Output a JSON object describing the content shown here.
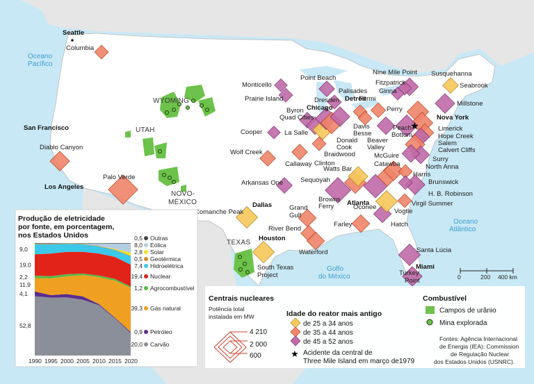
{
  "oceans": [
    {
      "id": "pacifico",
      "lines": [
        "Oceano",
        "Pacífico"
      ]
    },
    {
      "id": "atlantico",
      "lines": [
        "Oceano",
        "Atlântico"
      ]
    },
    {
      "id": "golfo",
      "lines": [
        "Golfo",
        "do México"
      ]
    }
  ],
  "states": [
    "WYOMING",
    "UTAH",
    "NOVO-",
    "MÉXICO",
    "TEXAS"
  ],
  "cities": [
    "Seattle",
    "San Francisco",
    "Los Angeles",
    "Dallas",
    "Houston",
    "Chicago",
    "Detroit",
    "Atlanta",
    "Nova York",
    "Miami"
  ],
  "plants": [
    "Columbia",
    "Diablo Canyon",
    "Palo Verde",
    "Comanche Peak",
    "South Texas",
    "Project",
    "Monticello",
    "Prairie Island",
    "Point Beach",
    "Palisades",
    "Cooper",
    "Wolf Creek",
    "Callaway",
    "Arkansas One",
    "Quad Cities",
    "Byron",
    "La Salle",
    "Dresden",
    "Donald",
    "Cook",
    "Braidwood",
    "Clinton",
    "Fermi",
    "Davis",
    "Besse",
    "Beaver",
    "Valley",
    "Perry",
    "Nine Mile Point",
    "Fitzpatrick",
    "Ginna",
    "Susquehanna",
    "Seabrook",
    "Millstone",
    "Peach",
    "Bottom",
    "Limerick",
    "Hope Creek",
    "Salem",
    "Calvert Cliffs",
    "Surry",
    "North Anna",
    "McGuire",
    "Catawba",
    "Harris",
    "Brunswick",
    "H. B. Robinson",
    "Watts Bar",
    "Sequoyah",
    "Browns",
    "Ferry",
    "Oconee",
    "Virgil Summer",
    "Vogtle",
    "Hatch",
    "Farley",
    "Grand",
    "Gulf",
    "River Bend",
    "Waterford",
    "Santa Lúcia",
    "Turkey",
    "Point"
  ],
  "chart": {
    "title_lines": [
      "Produção de eletricidade",
      "por fonte, em porcentagem,",
      "nos Estados Unidos"
    ],
    "x_ticks": [
      "1990",
      "1995",
      "2000",
      "2005",
      "2010",
      "2015",
      "2020"
    ],
    "left_values": [
      "9,0",
      "19,0",
      "2,2",
      "11,9",
      "4,1",
      "52,8"
    ],
    "legend": [
      {
        "value": "0,5",
        "label": "Outras",
        "color": "#444444"
      },
      {
        "value": "8,0",
        "label": "Eólica",
        "color": "#b5cde0"
      },
      {
        "value": "2,8",
        "label": "Solar",
        "color": "#f0e030"
      },
      {
        "value": "0,5",
        "label": "Geotérmica",
        "color": "#d38b2a"
      },
      {
        "value": "7,4",
        "label": "Hidroelétrica",
        "color": "#3cc8e8"
      },
      {
        "value": "19,4",
        "label": "Nuclear",
        "color": "#e2231a"
      },
      {
        "value": "1,2",
        "label": "Agrocombustível",
        "color": "#5ab946"
      },
      {
        "value": "39,3",
        "label": "Gás natural",
        "color": "#f0a020"
      },
      {
        "value": "0,9",
        "label": "Petróleo",
        "color": "#5a2d8c"
      },
      {
        "value": "20,0",
        "label": "Carvão",
        "color": "#8a8f99"
      }
    ]
  },
  "chart_data": {
    "type": "area",
    "title": "Produção de eletricidade por fonte, em porcentagem, nos Estados Unidos",
    "x": [
      1990,
      1995,
      2000,
      2005,
      2010,
      2015,
      2020
    ],
    "series": [
      {
        "name": "Carvão",
        "values": [
          52.8,
          51.5,
          51.7,
          49.6,
          44.8,
          33.2,
          20.0
        ]
      },
      {
        "name": "Petróleo",
        "values": [
          4.1,
          2.2,
          2.9,
          3.0,
          1.0,
          0.7,
          0.9
        ]
      },
      {
        "name": "Gás natural",
        "values": [
          11.9,
          14.8,
          15.8,
          18.8,
          23.9,
          32.7,
          39.3
        ]
      },
      {
        "name": "Agrocombustível",
        "values": [
          2.2,
          2.1,
          1.9,
          1.5,
          1.4,
          1.6,
          1.2
        ]
      },
      {
        "name": "Nuclear",
        "values": [
          19.0,
          20.1,
          19.8,
          19.3,
          19.6,
          19.5,
          19.4
        ]
      },
      {
        "name": "Hidroelétrica",
        "values": [
          9.0,
          8.2,
          7.2,
          6.7,
          6.3,
          6.1,
          7.4
        ]
      },
      {
        "name": "Geotérmica",
        "values": [
          0.5,
          0.5,
          0.4,
          0.4,
          0.4,
          0.4,
          0.5
        ]
      },
      {
        "name": "Solar",
        "values": [
          0.0,
          0.0,
          0.0,
          0.0,
          0.0,
          0.6,
          2.8
        ]
      },
      {
        "name": "Eólica",
        "values": [
          0.1,
          0.1,
          0.1,
          0.4,
          2.3,
          4.7,
          8.0
        ]
      },
      {
        "name": "Outras",
        "values": [
          0.4,
          0.5,
          0.2,
          0.3,
          0.3,
          0.5,
          0.5
        ]
      }
    ]
  },
  "legend_centrais": {
    "title": "Centrais nucleares",
    "subtitle_lines": [
      "Potência total",
      "instalada em MW"
    ],
    "sizes": [
      "4 210",
      "2 000",
      "600"
    ]
  },
  "legend_idade": {
    "title": "Idade do reator mais antigo",
    "items": [
      {
        "label": "de 25 a 34 anos",
        "color": "#f7c85a"
      },
      {
        "label": "de 35 a 44 anos",
        "color": "#f0846a"
      },
      {
        "label": "de 45 a 52 anos",
        "color": "#c06aa8"
      }
    ],
    "accident_lines": [
      "Acidente da central de",
      "Three Mile Island em março de1979"
    ]
  },
  "legend_combustivel": {
    "title": "Combustível",
    "campos": "Campos de urânio",
    "mina": "Mina explorada",
    "campos_color": "#6cc24a"
  },
  "scale": {
    "ticks": [
      "0",
      "200",
      "400 km"
    ]
  },
  "sources_lines": [
    "Fontes: Agência Internacional",
    "de Energia (IEA); Commission",
    "de Regulação Nuclear",
    "dos Estados Unidos (USNRC)."
  ],
  "colors": {
    "sea": "#c9e8f6",
    "land": "#ffffff",
    "neighbor": "#e6e6e6",
    "young": "#f7c85a",
    "mid": "#f0846a",
    "old": "#c06aa8"
  }
}
